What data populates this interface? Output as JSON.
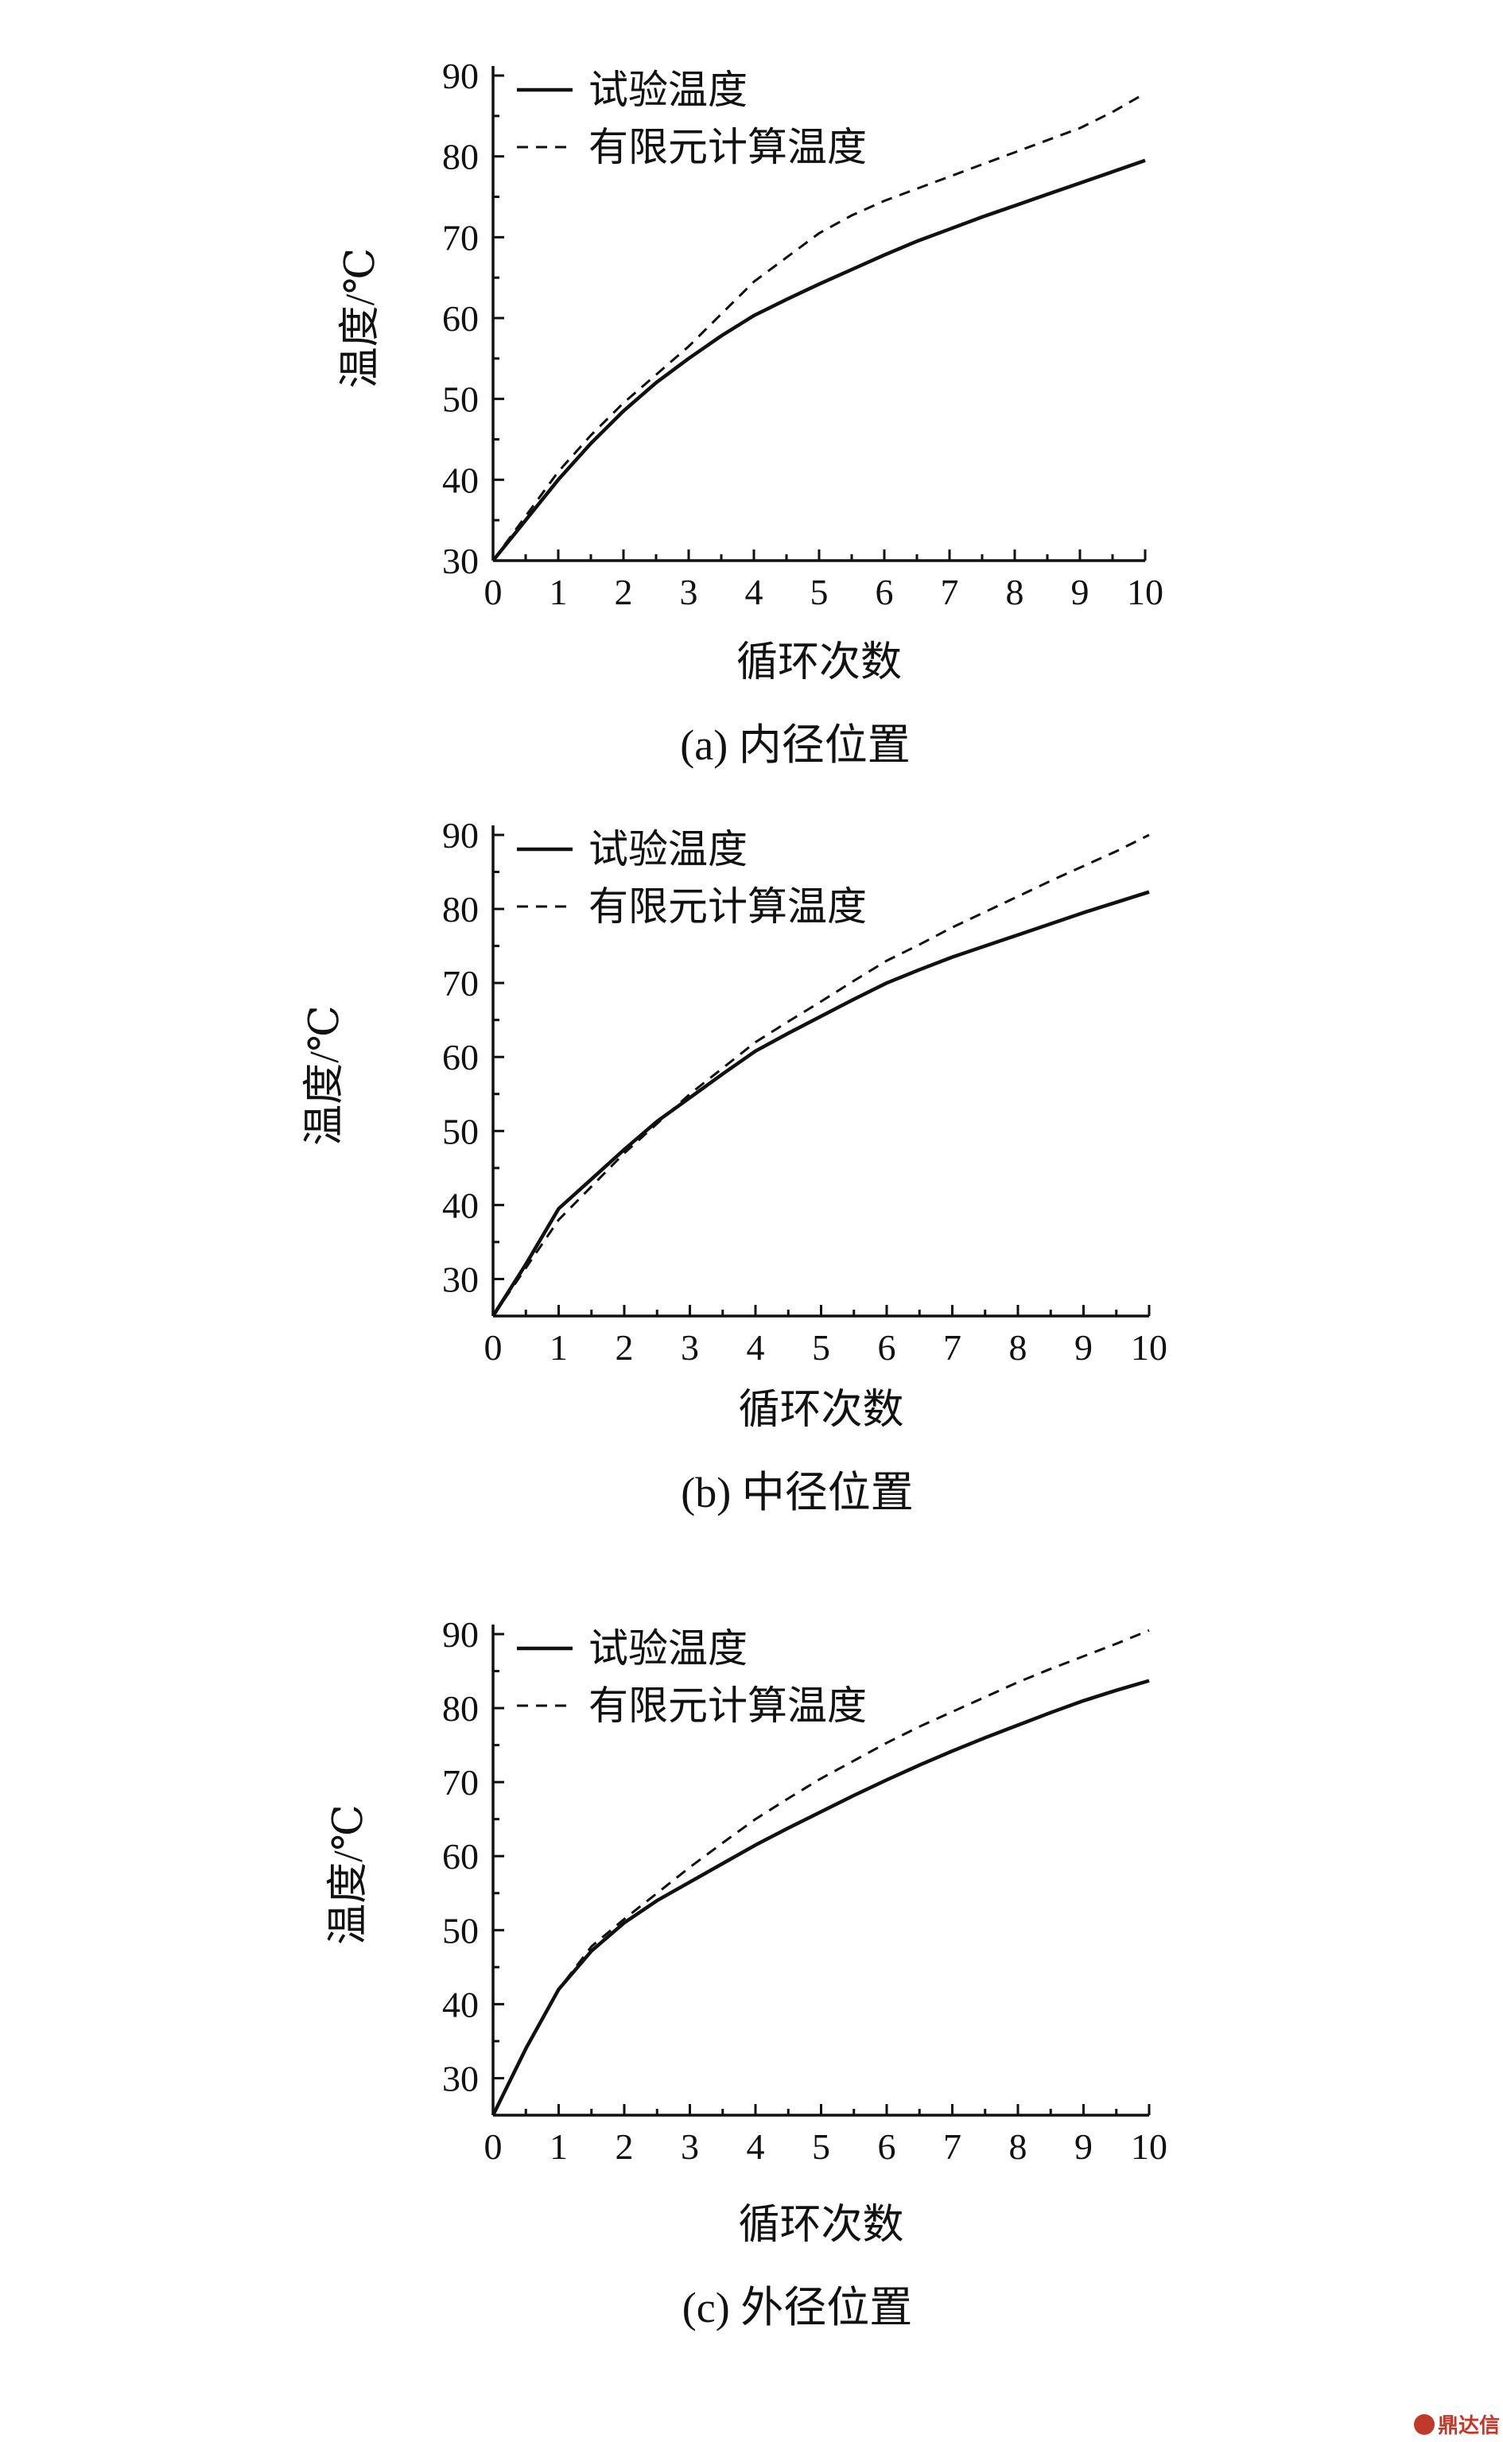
{
  "chart_data": [
    {
      "type": "line",
      "panel": "a",
      "caption": "(a) 内径位置",
      "xlabel": "循环次数",
      "ylabel": "温度/℃",
      "xlim": [
        0,
        10
      ],
      "ylim": [
        30,
        90
      ],
      "xticks": [
        0,
        1,
        2,
        3,
        4,
        5,
        6,
        7,
        8,
        9,
        10
      ],
      "yticks": [
        30,
        40,
        50,
        60,
        70,
        80,
        90
      ],
      "grid": false,
      "legend_position": "top-left",
      "series": [
        {
          "name": "试验温度",
          "style": "solid",
          "x": [
            0,
            0.5,
            1,
            1.5,
            2,
            2.5,
            3,
            3.5,
            4,
            4.5,
            5,
            5.5,
            6,
            6.5,
            7,
            7.5,
            8,
            8.5,
            9,
            9.5,
            10
          ],
          "y": [
            30,
            35,
            40,
            44.5,
            48.5,
            52,
            55,
            57.8,
            60.3,
            62.3,
            64.2,
            66,
            67.8,
            69.5,
            71,
            72.5,
            73.9,
            75.3,
            76.7,
            78.1,
            79.5
          ]
        },
        {
          "name": "有限元计算温度",
          "style": "dashed",
          "x": [
            0,
            0.5,
            1,
            1.5,
            2,
            2.5,
            3,
            3.5,
            4,
            4.5,
            5,
            5.5,
            6,
            6.5,
            7,
            7.5,
            8,
            8.5,
            9,
            9.5,
            10
          ],
          "y": [
            30,
            35.5,
            41,
            45.5,
            49.5,
            53,
            56.5,
            60.5,
            64.5,
            67.5,
            70.5,
            72.7,
            74.5,
            76,
            77.5,
            79,
            80.5,
            82,
            83.5,
            85.5,
            87.8
          ]
        }
      ]
    },
    {
      "type": "line",
      "panel": "b",
      "caption": "(b) 中径位置",
      "xlabel": "循环次数",
      "ylabel": "温度/℃",
      "xlim": [
        0,
        10
      ],
      "ylim": [
        25,
        90
      ],
      "xticks": [
        0,
        1,
        2,
        3,
        4,
        5,
        6,
        7,
        8,
        9,
        10
      ],
      "yticks": [
        30,
        40,
        50,
        60,
        70,
        80,
        90
      ],
      "grid": false,
      "legend_position": "top-left",
      "series": [
        {
          "name": "试验温度",
          "style": "solid",
          "x": [
            0,
            0.5,
            1,
            1.5,
            2,
            2.5,
            3,
            3.5,
            4,
            4.5,
            5,
            5.5,
            6,
            6.5,
            7,
            7.5,
            8,
            8.5,
            9,
            9.5,
            10
          ],
          "y": [
            25,
            32,
            39.5,
            43.5,
            47.5,
            51.3,
            54.5,
            57.7,
            60.8,
            63.2,
            65.5,
            67.8,
            70,
            71.8,
            73.5,
            75,
            76.5,
            78,
            79.5,
            80.9,
            82.3
          ]
        },
        {
          "name": "有限元计算温度",
          "style": "dashed",
          "x": [
            0,
            0.5,
            1,
            1.5,
            2,
            2.5,
            3,
            3.5,
            4,
            4.5,
            5,
            5.5,
            6,
            6.5,
            7,
            7.5,
            8,
            8.5,
            9,
            9.5,
            10
          ],
          "y": [
            25,
            31.5,
            38,
            42.5,
            47,
            51,
            55,
            58.5,
            62,
            64.8,
            67.5,
            70.3,
            73,
            75.2,
            77.5,
            79.6,
            81.7,
            83.8,
            85.8,
            87.8,
            90
          ]
        }
      ]
    },
    {
      "type": "line",
      "panel": "c",
      "caption": "(c) 外径位置",
      "xlabel": "循环次数",
      "ylabel": "温度/℃",
      "xlim": [
        0,
        10
      ],
      "ylim": [
        25,
        90
      ],
      "xticks": [
        0,
        1,
        2,
        3,
        4,
        5,
        6,
        7,
        8,
        9,
        10
      ],
      "yticks": [
        30,
        40,
        50,
        60,
        70,
        80,
        90
      ],
      "grid": false,
      "legend_position": "top-left",
      "series": [
        {
          "name": "试验温度",
          "style": "solid",
          "x": [
            0,
            0.5,
            1,
            1.5,
            2,
            2.5,
            3,
            3.5,
            4,
            4.5,
            5,
            5.5,
            6,
            6.5,
            7,
            7.5,
            8,
            8.5,
            9,
            9.5,
            10
          ],
          "y": [
            25,
            34,
            42,
            47.2,
            51,
            54,
            56.5,
            59,
            61.5,
            63.8,
            66,
            68.2,
            70.3,
            72.3,
            74.2,
            76,
            77.7,
            79.4,
            81,
            82.4,
            83.7
          ]
        },
        {
          "name": "有限元计算温度",
          "style": "dashed",
          "x": [
            0,
            0.5,
            1,
            1.5,
            2,
            2.5,
            3,
            3.5,
            4,
            4.5,
            5,
            5.5,
            6,
            6.5,
            7,
            7.5,
            8,
            8.5,
            9,
            9.5,
            10
          ],
          "y": [
            25,
            34,
            42,
            47.8,
            51.5,
            55,
            58.5,
            61.8,
            65,
            67.8,
            70.5,
            72.9,
            75.3,
            77.5,
            79.5,
            81.5,
            83.5,
            85.3,
            87,
            88.7,
            90.5
          ]
        }
      ]
    }
  ],
  "watermark": {
    "text": "鼎达信",
    "color": "#c0392b"
  }
}
